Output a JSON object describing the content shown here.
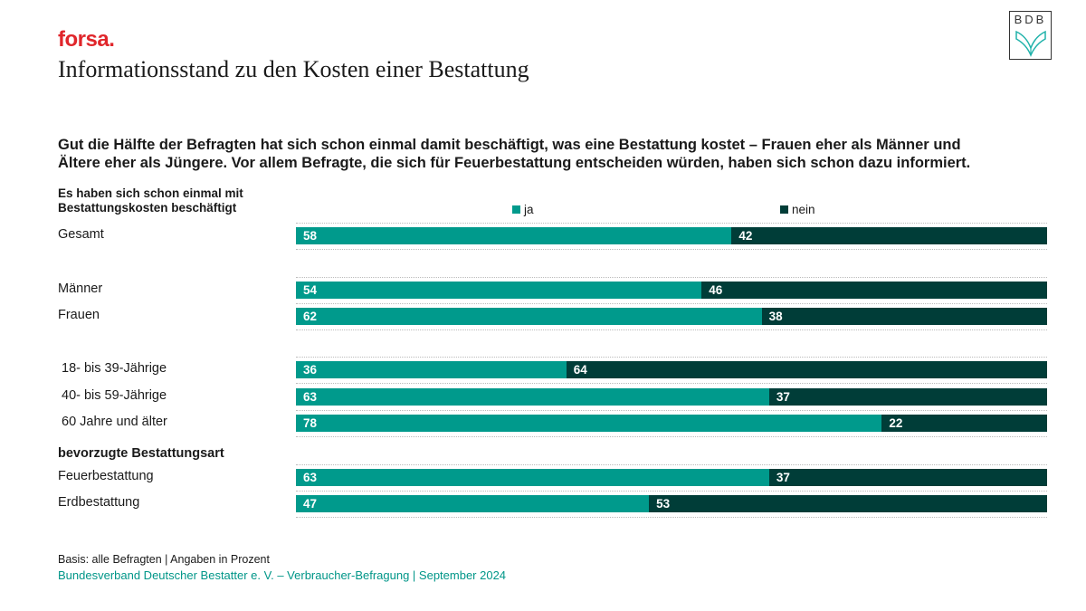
{
  "header": {
    "brand": "forsa.",
    "title": "Informationsstand zu den Kosten einer Bestattung",
    "logo_text": "BDB",
    "logo_icon": "open-book-icon"
  },
  "subtitle_line1": "Gut die Hälfte der Befragten hat sich schon einmal damit beschäftigt, was eine Bestattung kostet – Frauen eher als Männer und",
  "subtitle_line2": "Ältere eher als Jüngere. Vor allem Befragte, die sich für Feuerbestattung entscheiden würden, haben sich schon dazu informiert.",
  "footer": {
    "basis": "Basis: alle Befragten | Angaben in Prozent",
    "source": "Bundesverband Deutscher Bestatter e. V. – Verbraucher-Befragung | September 2024"
  },
  "colors": {
    "ja": "#009a8c",
    "nein": "#003d38",
    "brand": "#e0262b",
    "source": "#009688"
  },
  "chart_data": {
    "type": "bar",
    "orientation": "horizontal",
    "stacked": true,
    "title": "Es haben sich schon einmal mit Bestattungskosten beschäftigt",
    "row_header_line1": "Es haben sich schon einmal mit",
    "row_header_line2": "Bestattungskosten beschäftigt",
    "xlim": [
      0,
      100
    ],
    "unit": "Prozent",
    "legend_position": "top",
    "categories": [
      "Gesamt",
      "Männer",
      "Frauen",
      "18- bis 39-Jährige",
      "40- bis 59-Jährige",
      "60 Jahre und älter",
      "Feuerbestattung",
      "Erdbestattung"
    ],
    "groups": [
      {
        "label": "",
        "categories": [
          "Gesamt"
        ]
      },
      {
        "label": "",
        "categories": [
          "Männer",
          "Frauen"
        ]
      },
      {
        "label": "",
        "categories": [
          "18- bis 39-Jährige",
          "40- bis 59-Jährige",
          "60 Jahre und älter"
        ]
      },
      {
        "label": "bevorzugte Bestattungsart",
        "categories": [
          "Feuerbestattung",
          "Erdbestattung"
        ]
      }
    ],
    "series": [
      {
        "name": "ja",
        "values": [
          58,
          54,
          62,
          36,
          63,
          78,
          63,
          47
        ]
      },
      {
        "name": "nein",
        "values": [
          42,
          46,
          38,
          64,
          37,
          22,
          37,
          53
        ]
      }
    ]
  }
}
